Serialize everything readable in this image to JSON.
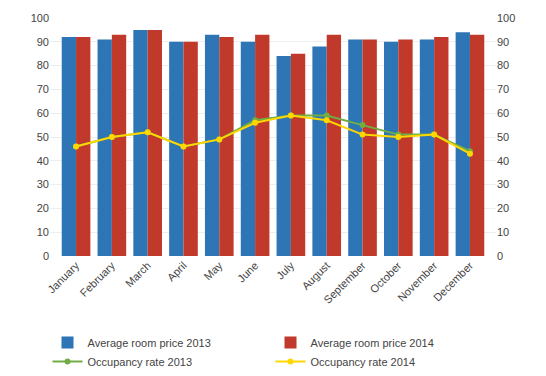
{
  "chart_data": {
    "type": "bar",
    "categories": [
      "January",
      "February",
      "March",
      "April",
      "May",
      "June",
      "July",
      "August",
      "September",
      "October",
      "November",
      "December"
    ],
    "series": [
      {
        "name": "Average room price 2013",
        "type": "bar",
        "color": "#2E75B6",
        "values": [
          92,
          91,
          95,
          90,
          93,
          90,
          84,
          88,
          91,
          90,
          91,
          94
        ]
      },
      {
        "name": "Average room price 2014",
        "type": "bar",
        "color": "#C0392B",
        "values": [
          92,
          93,
          95,
          90,
          92,
          93,
          85,
          93,
          91,
          91,
          92,
          93
        ]
      },
      {
        "name": "Occupancy rate 2013",
        "type": "line",
        "axis": "y2",
        "marker": "circle",
        "color": "#70AD47",
        "values": [
          46,
          50,
          52,
          46,
          49,
          57,
          59,
          59,
          55,
          51,
          51,
          44
        ]
      },
      {
        "name": "Occupancy rate 2014",
        "type": "line",
        "axis": "y2",
        "marker": "circle",
        "color": "#FFD700",
        "values": [
          46,
          50,
          52,
          46,
          49,
          56,
          59,
          57,
          51,
          50,
          51,
          43
        ]
      }
    ],
    "ylim": [
      0,
      100
    ],
    "yticks": [
      0,
      10,
      20,
      30,
      40,
      50,
      60,
      70,
      80,
      90,
      100
    ],
    "y2lim": [
      0,
      100
    ],
    "y2ticks": [
      0,
      10,
      20,
      30,
      40,
      50,
      60,
      70,
      80,
      90,
      100
    ],
    "grid": true,
    "legend": "bottom"
  }
}
